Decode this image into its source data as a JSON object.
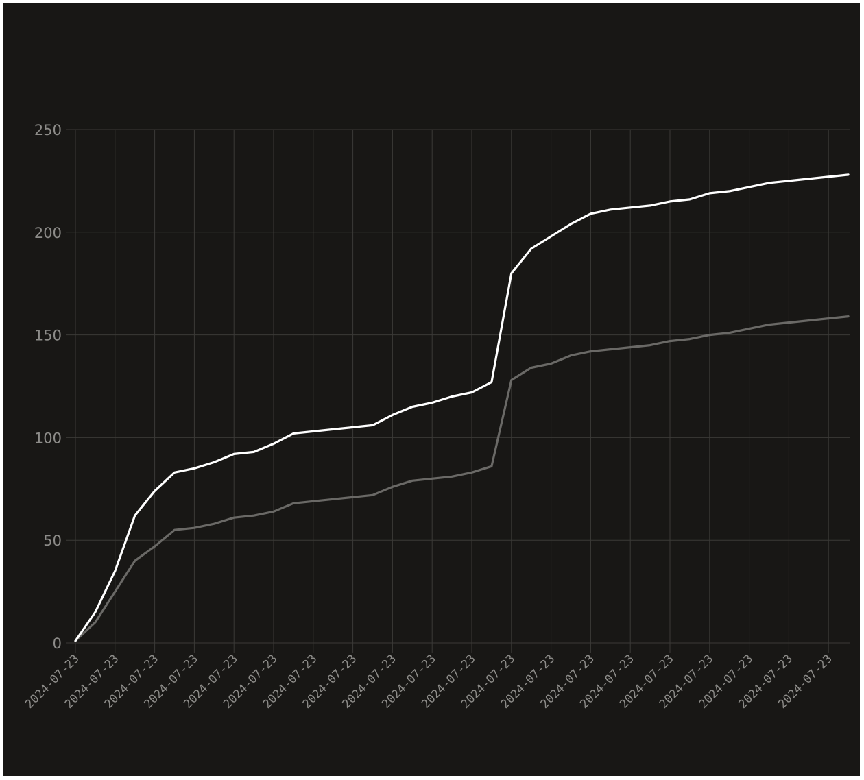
{
  "chart_data": {
    "type": "line",
    "title": "",
    "xlabel": "",
    "ylabel": "",
    "ylim": [
      0,
      250
    ],
    "y_ticks": [
      0,
      50,
      100,
      150,
      200,
      250
    ],
    "grid": true,
    "legend": "none",
    "background": "#181715",
    "x_tick_labels": [
      "2024-07-23",
      "2024-07-23",
      "2024-07-23",
      "2024-07-23",
      "2024-07-23",
      "2024-07-23",
      "2024-07-23",
      "2024-07-23",
      "2024-07-23",
      "2024-07-23",
      "2024-07-23",
      "2024-07-23",
      "2024-07-23",
      "2024-07-23",
      "2024-07-23",
      "2024-07-23",
      "2024-07-23",
      "2024-07-23",
      "2024-07-23",
      "2024-07-23"
    ],
    "x": [
      0,
      1,
      2,
      3,
      4,
      5,
      6,
      7,
      8,
      9,
      10,
      11,
      12,
      13,
      14,
      15,
      16,
      17,
      18,
      19,
      20,
      21,
      22,
      23,
      24,
      25,
      26,
      27,
      28,
      29,
      30,
      31,
      32,
      33,
      34,
      35,
      36,
      37,
      38,
      39
    ],
    "series": [
      {
        "color": "#ffffff",
        "values": [
          1,
          15,
          35,
          62,
          74,
          83,
          85,
          88,
          92,
          93,
          97,
          102,
          103,
          104,
          105,
          106,
          111,
          115,
          117,
          120,
          122,
          127,
          180,
          192,
          198,
          204,
          209,
          211,
          212,
          213,
          215,
          216,
          219,
          220,
          222,
          224,
          225,
          226,
          227,
          228
        ]
      },
      {
        "color": "#6a6966",
        "values": [
          1,
          10,
          25,
          40,
          47,
          55,
          56,
          58,
          61,
          62,
          64,
          68,
          69,
          70,
          71,
          72,
          76,
          79,
          80,
          81,
          83,
          86,
          128,
          134,
          136,
          140,
          142,
          143,
          144,
          145,
          147,
          148,
          150,
          151,
          153,
          155,
          156,
          157,
          158,
          159
        ]
      }
    ]
  }
}
